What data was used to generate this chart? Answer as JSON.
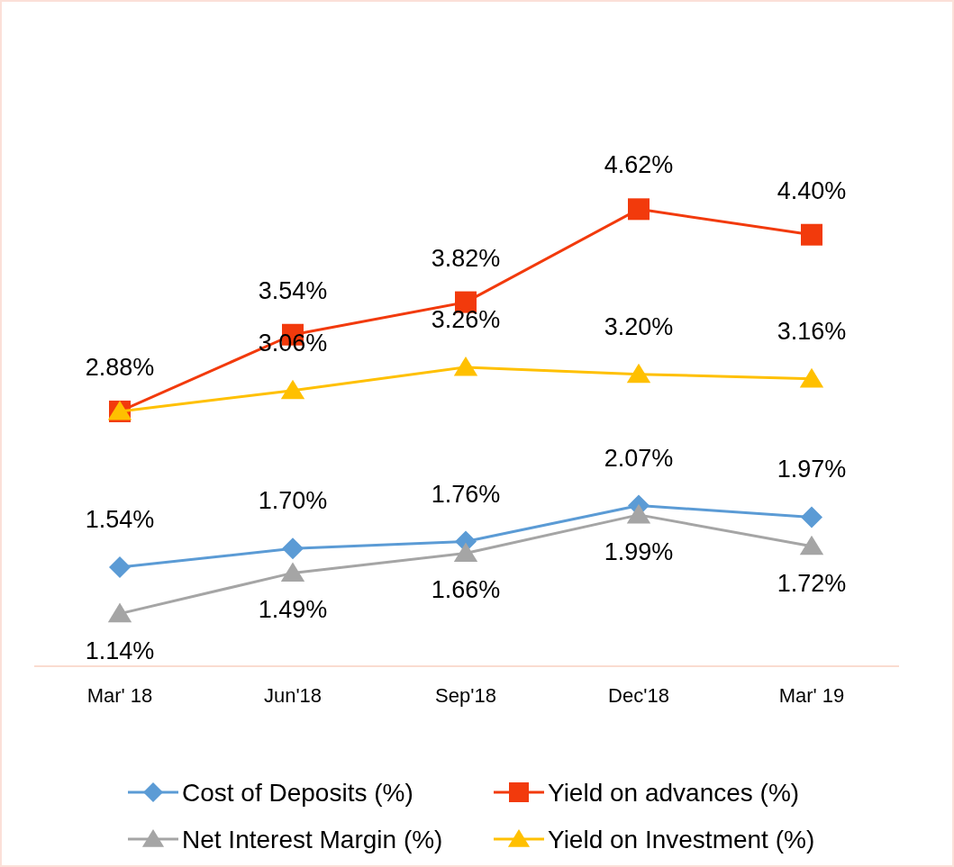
{
  "chart_data": {
    "type": "line",
    "categories": [
      "Mar' 18",
      "Jun'18",
      "Sep'18",
      "Dec'18",
      "Mar' 19"
    ],
    "series": [
      {
        "name": "Cost of Deposits (%)",
        "color": "#5b9bd5",
        "marker": "diamond",
        "values": [
          1.54,
          1.7,
          1.76,
          2.07,
          1.97
        ],
        "value_labels": [
          "1.54%",
          "1.70%",
          "1.76%",
          "2.07%",
          "1.97%"
        ]
      },
      {
        "name": "Yield on advances (%)",
        "color": "#f23a0c",
        "marker": "square",
        "values": [
          2.88,
          3.54,
          3.82,
          4.62,
          4.4
        ],
        "value_labels": [
          "2.88%",
          "3.54%",
          "3.82%",
          "4.62%",
          "4.40%"
        ]
      },
      {
        "name": "Net Interest Margin (%)",
        "color": "#a5a5a5",
        "marker": "triangle",
        "values": [
          1.14,
          1.49,
          1.66,
          1.99,
          1.72
        ],
        "value_labels": [
          "1.14%",
          "1.49%",
          "1.66%",
          "1.99%",
          "1.72%"
        ]
      },
      {
        "name": "Yield on Investment (%)",
        "color": "#ffc000",
        "marker": "triangle",
        "values": [
          2.88,
          3.06,
          3.26,
          3.2,
          3.16
        ],
        "value_labels": [
          null,
          "3.06%",
          "3.26%",
          "3.20%",
          "3.16%"
        ]
      }
    ],
    "legend": "bottom"
  }
}
